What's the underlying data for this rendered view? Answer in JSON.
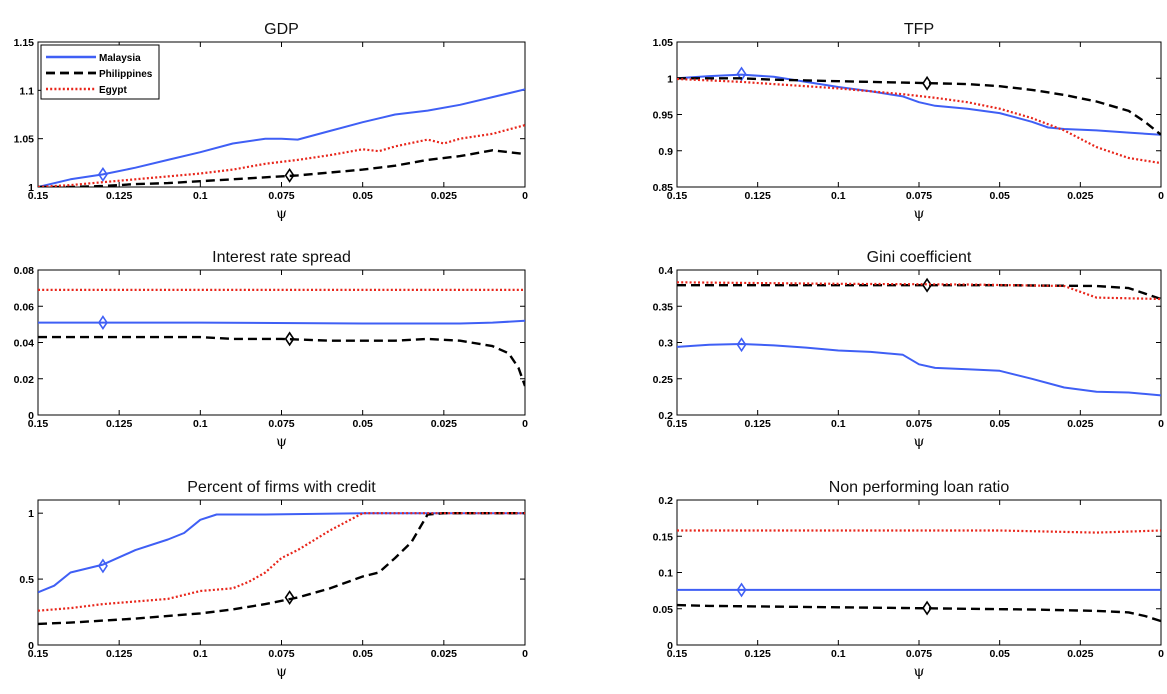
{
  "chart_data": [
    {
      "type": "line",
      "title": "GDP",
      "xlabel": "ψ",
      "ylabel": "",
      "xlim": [
        0.15,
        0
      ],
      "ylim": [
        1,
        1.15
      ],
      "xticks": [
        "0.15",
        "0.125",
        "0.1",
        "0.075",
        "0.05",
        "0.025",
        "0"
      ],
      "yticks": [
        "1",
        "1.05",
        "1.1",
        "1.15"
      ],
      "legend": {
        "placement": "top-left",
        "entries": [
          "Malaysia",
          "Philippines",
          "Egypt"
        ]
      },
      "series": [
        {
          "name": "Malaysia",
          "color": "#3f5ff5",
          "style": "solid",
          "x": [
            0.15,
            0.14,
            0.13,
            0.12,
            0.11,
            0.1,
            0.09,
            0.08,
            0.075,
            0.07,
            0.06,
            0.05,
            0.04,
            0.03,
            0.02,
            0.01,
            0
          ],
          "y": [
            1.0,
            1.008,
            1.013,
            1.02,
            1.028,
            1.036,
            1.045,
            1.05,
            1.05,
            1.049,
            1.058,
            1.067,
            1.075,
            1.079,
            1.085,
            1.093,
            1.101
          ],
          "marker_x": 0.13,
          "marker_y": 1.013
        },
        {
          "name": "Philippines",
          "color": "#000000",
          "style": "dashed",
          "x": [
            0.15,
            0.14,
            0.13,
            0.12,
            0.11,
            0.1,
            0.09,
            0.08,
            0.07,
            0.06,
            0.05,
            0.04,
            0.03,
            0.02,
            0.01,
            0
          ],
          "y": [
            1.0,
            1.0,
            1.001,
            1.003,
            1.004,
            1.006,
            1.008,
            1.01,
            1.012,
            1.015,
            1.018,
            1.022,
            1.028,
            1.032,
            1.038,
            1.034
          ],
          "marker_x": 0.0725,
          "marker_y": 1.012
        },
        {
          "name": "Egypt",
          "color": "#e8261b",
          "style": "dotted",
          "x": [
            0.15,
            0.14,
            0.13,
            0.12,
            0.11,
            0.1,
            0.09,
            0.08,
            0.07,
            0.06,
            0.05,
            0.045,
            0.04,
            0.03,
            0.025,
            0.02,
            0.01,
            0
          ],
          "y": [
            1.0,
            1.002,
            1.005,
            1.008,
            1.011,
            1.014,
            1.018,
            1.024,
            1.028,
            1.033,
            1.039,
            1.037,
            1.042,
            1.049,
            1.045,
            1.05,
            1.055,
            1.064
          ]
        }
      ]
    },
    {
      "type": "line",
      "title": "TFP",
      "xlabel": "ψ",
      "ylabel": "",
      "xlim": [
        0.15,
        0
      ],
      "ylim": [
        0.85,
        1.05
      ],
      "xticks": [
        "0.15",
        "0.125",
        "0.1",
        "0.075",
        "0.05",
        "0.025",
        "0"
      ],
      "yticks": [
        "0.85",
        "0.9",
        "0.95",
        "1",
        "1.05"
      ],
      "series": [
        {
          "name": "Malaysia",
          "color": "#3f5ff5",
          "style": "solid",
          "x": [
            0.15,
            0.14,
            0.13,
            0.12,
            0.11,
            0.1,
            0.09,
            0.08,
            0.075,
            0.07,
            0.06,
            0.05,
            0.04,
            0.035,
            0.03,
            0.02,
            0.01,
            0
          ],
          "y": [
            1.0,
            1.003,
            1.005,
            1.002,
            0.995,
            0.988,
            0.982,
            0.975,
            0.967,
            0.962,
            0.958,
            0.952,
            0.94,
            0.932,
            0.93,
            0.928,
            0.925,
            0.922
          ],
          "marker_x": 0.13,
          "marker_y": 1.006
        },
        {
          "name": "Philippines",
          "color": "#000000",
          "style": "dashed",
          "x": [
            0.15,
            0.14,
            0.13,
            0.12,
            0.11,
            0.1,
            0.09,
            0.08,
            0.07,
            0.06,
            0.05,
            0.04,
            0.03,
            0.02,
            0.01,
            0.005,
            0
          ],
          "y": [
            1.0,
            1.0,
            1.0,
            0.998,
            0.997,
            0.996,
            0.995,
            0.994,
            0.993,
            0.992,
            0.989,
            0.984,
            0.977,
            0.968,
            0.955,
            0.94,
            0.922
          ],
          "marker_x": 0.0725,
          "marker_y": 0.993
        },
        {
          "name": "Egypt",
          "color": "#e8261b",
          "style": "dotted",
          "x": [
            0.15,
            0.14,
            0.13,
            0.12,
            0.11,
            0.1,
            0.09,
            0.08,
            0.07,
            0.06,
            0.05,
            0.04,
            0.03,
            0.02,
            0.01,
            0
          ],
          "y": [
            0.999,
            0.997,
            0.995,
            0.992,
            0.989,
            0.986,
            0.982,
            0.978,
            0.973,
            0.967,
            0.958,
            0.945,
            0.928,
            0.905,
            0.89,
            0.883
          ]
        }
      ]
    },
    {
      "type": "line",
      "title": "Interest rate spread",
      "xlabel": "ψ",
      "ylabel": "",
      "xlim": [
        0.15,
        0
      ],
      "ylim": [
        0,
        0.08
      ],
      "xticks": [
        "0.15",
        "0.125",
        "0.1",
        "0.075",
        "0.05",
        "0.025",
        "0"
      ],
      "yticks": [
        "0",
        "0.02",
        "0.04",
        "0.06",
        "0.08"
      ],
      "series": [
        {
          "name": "Malaysia",
          "color": "#3f5ff5",
          "style": "solid",
          "x": [
            0.15,
            0.1,
            0.05,
            0.02,
            0.01,
            0
          ],
          "y": [
            0.051,
            0.051,
            0.0505,
            0.0505,
            0.051,
            0.052
          ],
          "marker_x": 0.13,
          "marker_y": 0.051
        },
        {
          "name": "Philippines",
          "color": "#000000",
          "style": "dashed",
          "x": [
            0.15,
            0.12,
            0.1,
            0.09,
            0.075,
            0.06,
            0.05,
            0.04,
            0.03,
            0.02,
            0.01,
            0.005,
            0.002,
            0
          ],
          "y": [
            0.043,
            0.043,
            0.043,
            0.042,
            0.042,
            0.041,
            0.041,
            0.041,
            0.042,
            0.041,
            0.038,
            0.034,
            0.026,
            0.016
          ],
          "marker_x": 0.0725,
          "marker_y": 0.042
        },
        {
          "name": "Egypt",
          "color": "#e8261b",
          "style": "dotted",
          "x": [
            0.15,
            0
          ],
          "y": [
            0.069,
            0.069
          ]
        }
      ]
    },
    {
      "type": "line",
      "title": "Gini coefficient",
      "xlabel": "ψ",
      "ylabel": "",
      "xlim": [
        0.15,
        0
      ],
      "ylim": [
        0.2,
        0.4
      ],
      "xticks": [
        "0.15",
        "0.125",
        "0.1",
        "0.075",
        "0.05",
        "0.025",
        "0"
      ],
      "yticks": [
        "0.2",
        "0.25",
        "0.3",
        "0.35",
        "0.4"
      ],
      "series": [
        {
          "name": "Malaysia",
          "color": "#3f5ff5",
          "style": "solid",
          "x": [
            0.15,
            0.14,
            0.13,
            0.12,
            0.11,
            0.1,
            0.09,
            0.08,
            0.075,
            0.07,
            0.06,
            0.05,
            0.04,
            0.03,
            0.02,
            0.01,
            0
          ],
          "y": [
            0.294,
            0.297,
            0.298,
            0.296,
            0.293,
            0.289,
            0.287,
            0.283,
            0.27,
            0.265,
            0.263,
            0.261,
            0.25,
            0.238,
            0.232,
            0.231,
            0.227
          ],
          "marker_x": 0.13,
          "marker_y": 0.297
        },
        {
          "name": "Philippines",
          "color": "#000000",
          "style": "dashed",
          "x": [
            0.15,
            0.1,
            0.075,
            0.05,
            0.02,
            0.01,
            0
          ],
          "y": [
            0.379,
            0.379,
            0.379,
            0.379,
            0.378,
            0.375,
            0.36
          ],
          "marker_x": 0.0725,
          "marker_y": 0.379
        },
        {
          "name": "Egypt",
          "color": "#e8261b",
          "style": "dotted",
          "x": [
            0.15,
            0.1,
            0.06,
            0.03,
            0.025,
            0.02,
            0
          ],
          "y": [
            0.383,
            0.381,
            0.38,
            0.378,
            0.37,
            0.362,
            0.36
          ]
        }
      ]
    },
    {
      "type": "line",
      "title": "Percent of firms with credit",
      "xlabel": "ψ",
      "ylabel": "",
      "xlim": [
        0.15,
        0
      ],
      "ylim": [
        0,
        1.1
      ],
      "xticks": [
        "0.15",
        "0.125",
        "0.1",
        "0.075",
        "0.05",
        "0.025",
        "0"
      ],
      "yticks": [
        "0",
        "0.5",
        "1"
      ],
      "series": [
        {
          "name": "Malaysia",
          "color": "#3f5ff5",
          "style": "solid",
          "x": [
            0.15,
            0.145,
            0.14,
            0.13,
            0.12,
            0.11,
            0.105,
            0.1,
            0.095,
            0.09,
            0.08,
            0.05,
            0
          ],
          "y": [
            0.4,
            0.45,
            0.55,
            0.61,
            0.72,
            0.8,
            0.85,
            0.95,
            0.99,
            0.99,
            0.99,
            1.0,
            1.0
          ],
          "marker_x": 0.13,
          "marker_y": 0.6
        },
        {
          "name": "Philippines",
          "color": "#000000",
          "style": "dashed",
          "x": [
            0.15,
            0.14,
            0.12,
            0.1,
            0.09,
            0.08,
            0.07,
            0.06,
            0.05,
            0.045,
            0.04,
            0.035,
            0.03,
            0.025,
            0
          ],
          "y": [
            0.16,
            0.17,
            0.2,
            0.24,
            0.27,
            0.31,
            0.36,
            0.43,
            0.52,
            0.55,
            0.66,
            0.78,
            0.99,
            1.0,
            1.0
          ],
          "marker_x": 0.0725,
          "marker_y": 0.36
        },
        {
          "name": "Egypt",
          "color": "#e8261b",
          "style": "dotted",
          "x": [
            0.15,
            0.14,
            0.13,
            0.12,
            0.11,
            0.1,
            0.09,
            0.085,
            0.08,
            0.075,
            0.07,
            0.06,
            0.05,
            0.04,
            0
          ],
          "y": [
            0.26,
            0.28,
            0.31,
            0.33,
            0.35,
            0.41,
            0.43,
            0.48,
            0.55,
            0.66,
            0.72,
            0.87,
            1.0,
            1.0,
            1.0
          ]
        }
      ]
    },
    {
      "type": "line",
      "title": "Non performing loan ratio",
      "xlabel": "ψ",
      "ylabel": "",
      "xlim": [
        0.15,
        0
      ],
      "ylim": [
        0,
        0.2
      ],
      "xticks": [
        "0.15",
        "0.125",
        "0.1",
        "0.075",
        "0.05",
        "0.025",
        "0"
      ],
      "yticks": [
        "0",
        "0.05",
        "0.1",
        "0.15",
        "0.2"
      ],
      "series": [
        {
          "name": "Malaysia",
          "color": "#3f5ff5",
          "style": "solid",
          "x": [
            0.15,
            0
          ],
          "y": [
            0.076,
            0.076
          ],
          "marker_x": 0.13,
          "marker_y": 0.076
        },
        {
          "name": "Philippines",
          "color": "#000000",
          "style": "dashed",
          "x": [
            0.15,
            0.14,
            0.12,
            0.1,
            0.08,
            0.06,
            0.04,
            0.02,
            0.01,
            0.005,
            0
          ],
          "y": [
            0.055,
            0.054,
            0.053,
            0.052,
            0.051,
            0.05,
            0.049,
            0.047,
            0.045,
            0.04,
            0.033
          ],
          "marker_x": 0.0725,
          "marker_y": 0.051
        },
        {
          "name": "Egypt",
          "color": "#e8261b",
          "style": "dotted",
          "x": [
            0.15,
            0.05,
            0.03,
            0.02,
            0
          ],
          "y": [
            0.158,
            0.158,
            0.156,
            0.155,
            0.158
          ]
        }
      ]
    }
  ]
}
